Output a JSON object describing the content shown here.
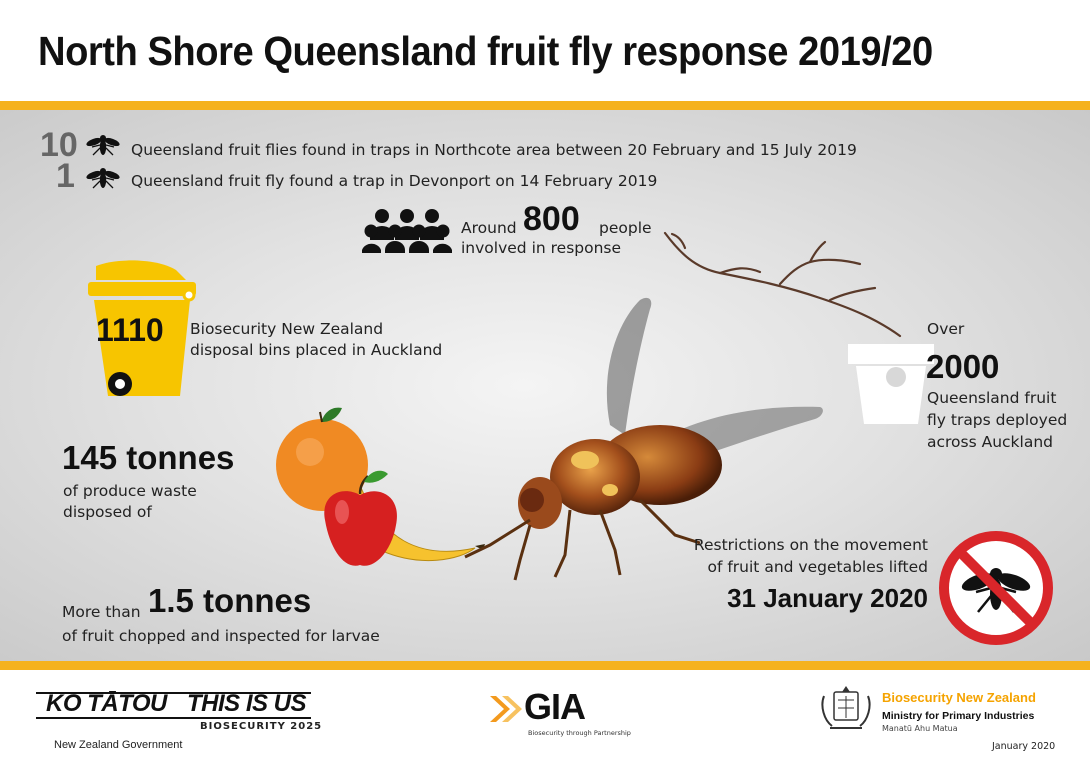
{
  "header": {
    "title": "North Shore Queensland fruit fly response 2019/20"
  },
  "stats": {
    "northcote": {
      "number": "10",
      "text": "Queensland fruit flies found in traps in Northcote area between 20 February and 15 July 2019"
    },
    "devonport": {
      "number": "1",
      "text": "Queensland fruit fly found a trap in Devonport on 14 February 2019"
    },
    "people": {
      "prefix": "Around",
      "number": "800",
      "suffix": "people",
      "line2": "involved in response"
    },
    "bins": {
      "number": "1110",
      "line1": "Biosecurity New Zealand",
      "line2": "disposal bins placed in Auckland"
    },
    "traps": {
      "prefix": "Over",
      "number": "2000",
      "line1": "Queensland fruit",
      "line2": "fly traps deployed",
      "line3": "across Auckland"
    },
    "produce": {
      "number": "145 tonnes",
      "line1": "of produce waste",
      "line2": "disposed of"
    },
    "restrictions": {
      "line1": "Restrictions on the movement",
      "line2": "of fruit and vegetables lifted",
      "date": "31 January 2020"
    },
    "fruit": {
      "prefix": "More than",
      "number": "1.5 tonnes",
      "line2": "of fruit chopped and inspected for larvae"
    }
  },
  "footer": {
    "kotatou": "KO TĀTOU",
    "thisisus": "THIS IS US",
    "biosecurity2025": "BIOSECURITY 2025",
    "nzgov": "New Zealand Government",
    "gia": "GIA",
    "gia_tagline": "Biosecurity through Partnership",
    "bnz": "Biosecurity New Zealand",
    "mpi": "Ministry for Primary Industries",
    "mpi_maori": "Manatū Ahu Matua",
    "date": "January 2020"
  },
  "colors": {
    "accent": "#f5b21e",
    "bin": "#f7c500",
    "no_sign": "#d9262a",
    "dark_text": "#111111"
  },
  "icons": [
    "fly-icon",
    "people-icon",
    "bin-icon",
    "trap-icon",
    "fruit-icon",
    "fly-photo",
    "no-fly-icon",
    "nz-crest-icon",
    "gia-logo"
  ]
}
